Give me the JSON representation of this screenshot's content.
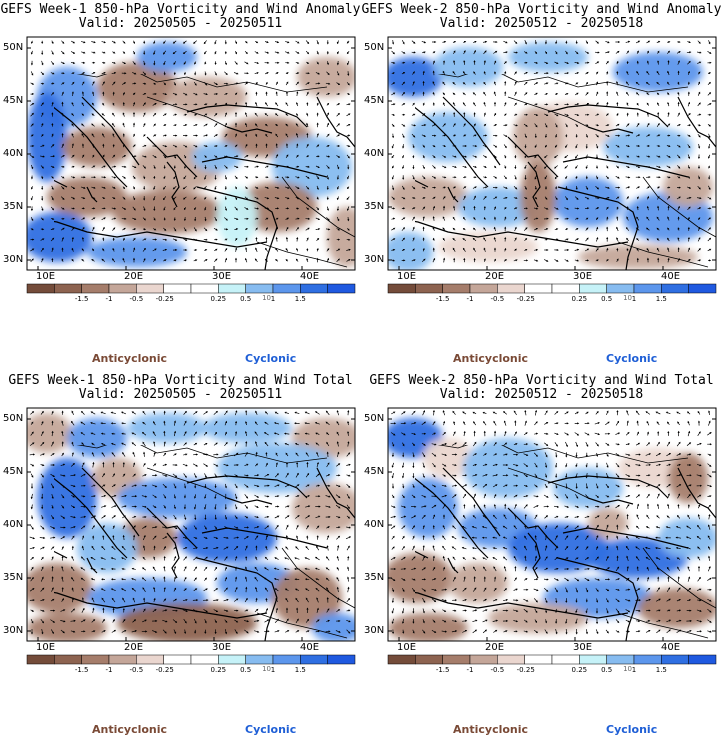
{
  "colors": {
    "anticyclonic_label": "#7a4a36",
    "cyclonic_label": "#1f5fd6",
    "scale": [
      "#744c3a",
      "#8d6350",
      "#a57d6b",
      "#c4a699",
      "#ead6cf",
      "#ffffff",
      "#ffffff",
      "#c6f2f8",
      "#87bcf0",
      "#5c96ec",
      "#2f6fe2",
      "#1f59e0"
    ]
  },
  "legend": {
    "ticks": [
      "-1.5",
      "-1",
      "-0.5",
      "-0.25",
      "0.25",
      "0.5",
      "1",
      "1.5"
    ],
    "anticyclonic": "Anticyclonic",
    "cyclonic": "Cyclonic",
    "units_mark": "10"
  },
  "axes": {
    "lat_labels": [
      "50N",
      "45N",
      "40N",
      "35N",
      "30N"
    ],
    "lon_labels": [
      "10E",
      "20E",
      "30E",
      "40E"
    ]
  },
  "panels": [
    {
      "title": "GEFS Week-1 850-hPa Vorticity and Wind Anomaly",
      "valid": "Valid: 20250505 - 20250511"
    },
    {
      "title": "GEFS Week-2 850-hPa Vorticity and Wind Anomaly",
      "valid": "Valid: 20250512 - 20250518"
    },
    {
      "title": "GEFS Week-1 850-hPa Vorticity and Wind Total",
      "valid": "Valid: 20250505 - 20250511"
    },
    {
      "title": "GEFS Week-2 850-hPa Vorticity and Wind Total",
      "valid": "Valid: 20250512 - 20250518"
    }
  ]
}
